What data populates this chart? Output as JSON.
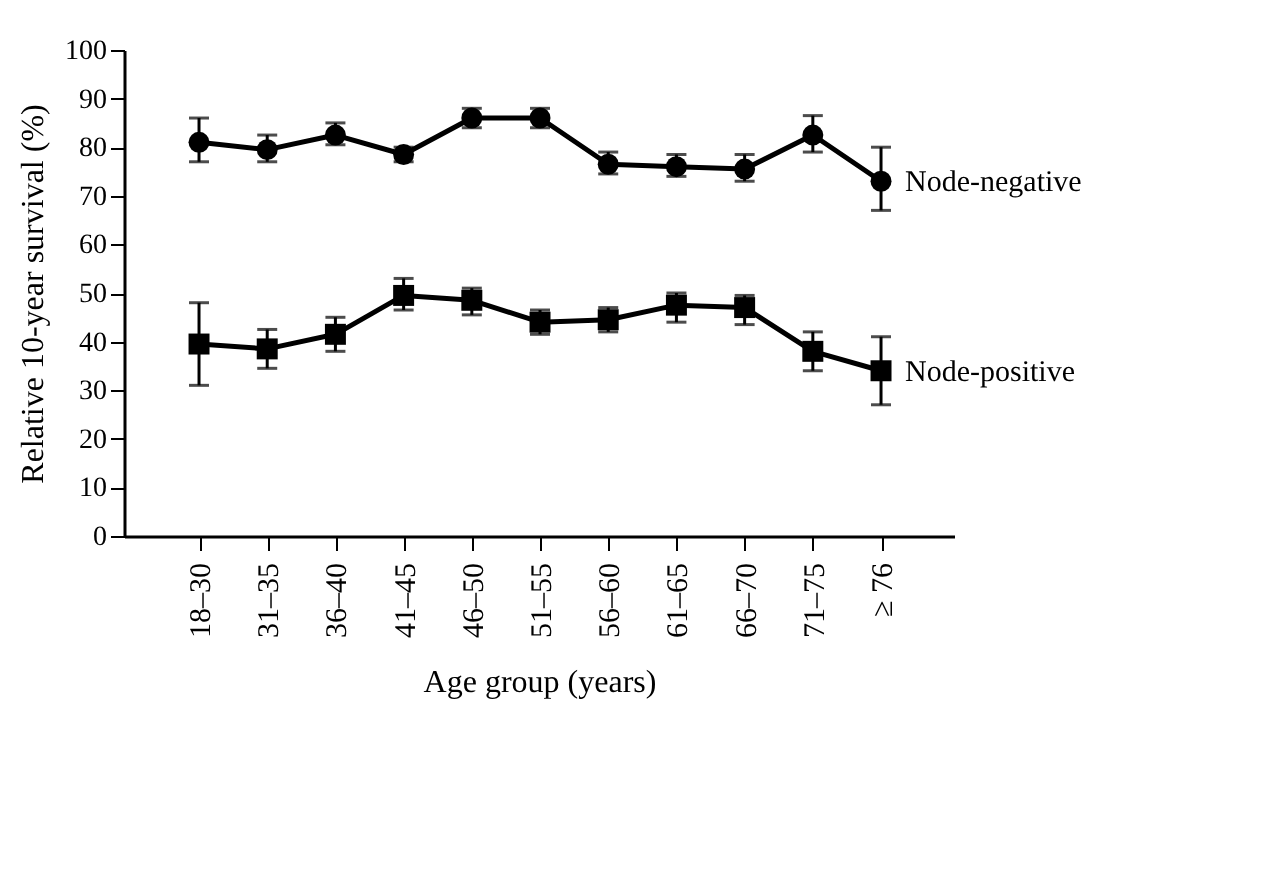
{
  "chart_data": {
    "type": "line",
    "xlabel": "Age group (years)",
    "ylabel": "Relative 10-year survival (%)",
    "categories": [
      "18–30",
      "31–35",
      "36–40",
      "41–45",
      "46–50",
      "51–55",
      "56–60",
      "61–65",
      "66–70",
      "71–75",
      "≥ 76"
    ],
    "ylim": [
      0,
      100
    ],
    "yticks": [
      0,
      10,
      20,
      30,
      40,
      50,
      60,
      70,
      80,
      90,
      100
    ],
    "grid": false,
    "legend": false,
    "line_style": "solid",
    "series": [
      {
        "name": "Node-negative",
        "color": "#000000",
        "marker": "circle",
        "values": [
          81,
          79.5,
          82.5,
          78.5,
          86,
          86,
          76.5,
          76,
          75.5,
          82.5,
          73
        ],
        "errors": [
          [
            77,
            86
          ],
          [
            77,
            82.5
          ],
          [
            80.5,
            85
          ],
          [
            77,
            80
          ],
          [
            84,
            88
          ],
          [
            84,
            88
          ],
          [
            74.5,
            79
          ],
          [
            74,
            78.5
          ],
          [
            73,
            78.5
          ],
          [
            79,
            86.5
          ],
          [
            67,
            80
          ]
        ]
      },
      {
        "name": "Node-positive",
        "color": "#000000",
        "marker": "square",
        "values": [
          39.5,
          38.5,
          41.5,
          49.5,
          48.5,
          44,
          44.5,
          47.5,
          47,
          38,
          34
        ],
        "errors": [
          [
            31,
            48
          ],
          [
            34.5,
            42.5
          ],
          [
            38,
            45
          ],
          [
            46.5,
            53
          ],
          [
            45.5,
            51
          ],
          [
            41.5,
            46.5
          ],
          [
            42,
            47
          ],
          [
            44,
            50
          ],
          [
            43.5,
            49.5
          ],
          [
            34,
            42
          ],
          [
            27,
            41
          ]
        ]
      }
    ]
  }
}
